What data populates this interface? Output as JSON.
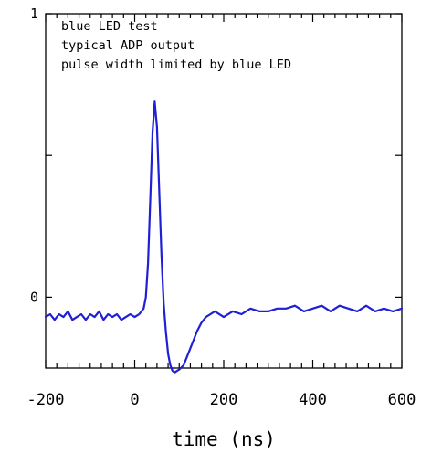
{
  "chart_data": {
    "type": "line",
    "xlabel": "time (ns)",
    "annotations": [
      "blue LED test",
      "typical ADP output",
      "pulse width limited by blue LED"
    ],
    "xlim": [
      -200,
      600
    ],
    "ylim": [
      -0.25,
      1.0
    ],
    "x_ticks": [
      -200,
      0,
      200,
      400,
      600
    ],
    "x_tick_labels": [
      "-200",
      "0",
      "200",
      "400",
      "600"
    ],
    "y_ticks": [
      0,
      1
    ],
    "y_tick_labels": [
      "0",
      "1"
    ],
    "grid": false,
    "line_color": "#1f1fd6",
    "series": [
      {
        "x": [
          -200,
          -190,
          -180,
          -170,
          -160,
          -150,
          -140,
          -130,
          -120,
          -110,
          -100,
          -90,
          -80,
          -70,
          -60,
          -50,
          -40,
          -30,
          -20,
          -10,
          0,
          10,
          20,
          25,
          30,
          35,
          40,
          45,
          50,
          55,
          60,
          65,
          70,
          75,
          80,
          85,
          90,
          95,
          100,
          110,
          120,
          130,
          140,
          150,
          160,
          170,
          180,
          200,
          220,
          240,
          260,
          280,
          300,
          320,
          340,
          360,
          380,
          400,
          420,
          440,
          460,
          480,
          500,
          520,
          540,
          560,
          580,
          600
        ],
        "y": [
          -0.07,
          -0.06,
          -0.08,
          -0.06,
          -0.07,
          -0.05,
          -0.08,
          -0.07,
          -0.06,
          -0.08,
          -0.06,
          -0.07,
          -0.05,
          -0.08,
          -0.06,
          -0.07,
          -0.06,
          -0.08,
          -0.07,
          -0.06,
          -0.07,
          -0.06,
          -0.04,
          0.0,
          0.12,
          0.35,
          0.58,
          0.69,
          0.6,
          0.38,
          0.15,
          -0.02,
          -0.12,
          -0.2,
          -0.24,
          -0.26,
          -0.265,
          -0.26,
          -0.255,
          -0.24,
          -0.2,
          -0.16,
          -0.12,
          -0.09,
          -0.07,
          -0.06,
          -0.05,
          -0.07,
          -0.05,
          -0.06,
          -0.04,
          -0.05,
          -0.05,
          -0.04,
          -0.04,
          -0.03,
          -0.05,
          -0.04,
          -0.03,
          -0.05,
          -0.03,
          -0.04,
          -0.05,
          -0.03,
          -0.05,
          -0.04,
          -0.05,
          -0.04
        ]
      }
    ]
  }
}
